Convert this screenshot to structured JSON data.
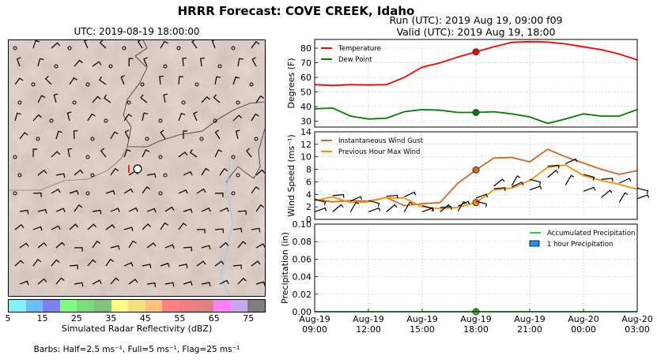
{
  "title": "HRRR Forecast: COVE CREEK, Idaho",
  "map": {
    "title": "UTC: 2019-08-19 18:00:00",
    "colorbar": {
      "label": "Simulated Radar Reflectivity (dBZ)",
      "ticks": [
        "5",
        "15",
        "25",
        "35",
        "45",
        "55",
        "65",
        "75"
      ],
      "colors": [
        "#7ff3f8",
        "#6fbcf8",
        "#7f7ff4",
        "#80fd7e",
        "#7edb7c",
        "#7fc27f",
        "#fdfd82",
        "#f3e07e",
        "#fdc27e",
        "#fd7f7f",
        "#ec7f7f",
        "#dd8181",
        "#fd7ffd",
        "#c8a8ec",
        "#7e7e7e"
      ]
    },
    "barb_note": "Barbs: Half=2.5 ms⁻¹, Full=5 ms⁻¹, Flag=25 ms⁻¹",
    "terrain_color": "#bfaaa1"
  },
  "run_line": "Run (UTC): 2019 Aug 19, 09:00 f09",
  "valid_line": "Valid (UTC): 2019 Aug 19, 18:00",
  "x_tick_labels": [
    [
      "Aug-19",
      "09:00"
    ],
    [
      "Aug-19",
      "12:00"
    ],
    [
      "Aug-19",
      "15:00"
    ],
    [
      "Aug-19",
      "18:00"
    ],
    [
      "Aug-19",
      "21:00"
    ],
    [
      "Aug-20",
      "00:00"
    ],
    [
      "Aug-20",
      "03:00"
    ]
  ],
  "chart_data": [
    {
      "type": "line",
      "ylabel": "Degrees (F)",
      "ylim": [
        26,
        86
      ],
      "yticks": [
        30,
        40,
        50,
        60,
        70,
        80
      ],
      "legend_position": "top-left",
      "grid": true,
      "x_hours": [
        9,
        10,
        11,
        12,
        13,
        14,
        15,
        16,
        17,
        18,
        19,
        20,
        21,
        22,
        23,
        24,
        25,
        26,
        27
      ],
      "series": [
        {
          "name": "Temperature",
          "color": "#ff0000",
          "values": [
            55,
            54.5,
            55,
            54.8,
            55,
            60,
            67,
            70,
            74,
            77.5,
            81,
            84,
            84.5,
            84.2,
            83,
            81,
            79,
            76,
            72
          ]
        },
        {
          "name": "Dew Point",
          "color": "#008000",
          "values": [
            38.5,
            39,
            33.5,
            31.5,
            32,
            36.5,
            38,
            37.5,
            36,
            36,
            36.5,
            35,
            33,
            28.5,
            31.5,
            35,
            33.5,
            33.5,
            38
          ]
        }
      ],
      "marker_hour": 18
    },
    {
      "type": "line",
      "ylabel": "Wind Speed (ms⁻¹)",
      "ylim": [
        0,
        14
      ],
      "yticks": [
        0,
        2,
        4,
        6,
        8,
        10,
        12,
        14
      ],
      "legend_position": "top-left",
      "grid": true,
      "x_hours": [
        9,
        10,
        11,
        12,
        13,
        14,
        15,
        16,
        17,
        18,
        19,
        20,
        21,
        22,
        23,
        24,
        25,
        26,
        27
      ],
      "series": [
        {
          "name": "Instantaneous Wind Gust",
          "color": "#d2691e",
          "values": [
            3.2,
            2.8,
            3,
            2.9,
            3.5,
            2.2,
            2.5,
            2.7,
            5.8,
            7.9,
            9.8,
            9.9,
            9.2,
            11.2,
            10,
            9,
            8,
            7.2,
            7.8
          ]
        },
        {
          "name": "Previous Hour Max Wind",
          "color": "#ff8c00",
          "values": [
            3,
            3.6,
            2.7,
            2.8,
            3.5,
            3.4,
            2,
            1.7,
            1.9,
            2.7,
            4.7,
            5,
            6.2,
            8.3,
            8.7,
            7,
            6.2,
            5.6,
            4.8
          ]
        }
      ],
      "marker_hour": 18
    },
    {
      "type": "line",
      "ylabel": "Precipitation (in)",
      "ylim": [
        0,
        0.1
      ],
      "yticks": [
        "0.00",
        "0.02",
        "0.04",
        "0.06",
        "0.08",
        "0.10"
      ],
      "legend_position": "top-right",
      "grid": true,
      "x_hours": [
        9,
        10,
        11,
        12,
        13,
        14,
        15,
        16,
        17,
        18,
        19,
        20,
        21,
        22,
        23,
        24,
        25,
        26,
        27
      ],
      "series": [
        {
          "name": "Accumulated Precipitation",
          "color": "#32cd32",
          "values": [
            0,
            0,
            0,
            0,
            0,
            0,
            0,
            0,
            0,
            0,
            0,
            0,
            0,
            0,
            0,
            0,
            0,
            0,
            0
          ]
        },
        {
          "name": "1 hour Precipitation",
          "color": "#1e90ff",
          "kind": "bar",
          "values": [
            0,
            0,
            0,
            0,
            0,
            0,
            0,
            0,
            0,
            0,
            0,
            0,
            0,
            0,
            0,
            0,
            0,
            0,
            0
          ]
        }
      ],
      "marker_hour": 18
    }
  ]
}
